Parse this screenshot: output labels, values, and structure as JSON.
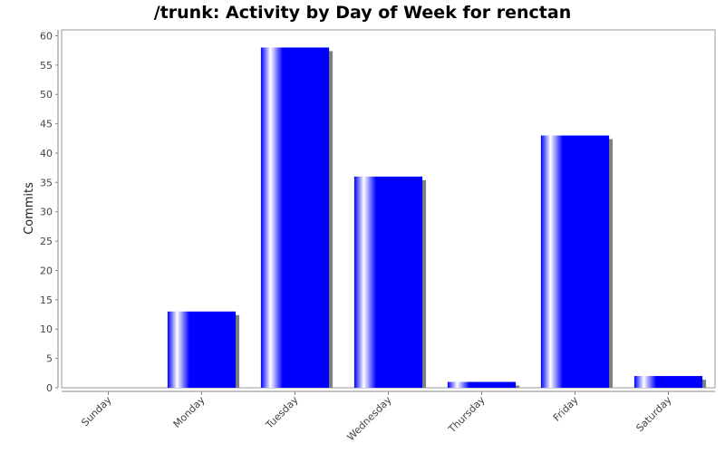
{
  "chart_data": {
    "type": "bar",
    "title": "/trunk: Activity by Day of Week for renctan",
    "xlabel": "",
    "ylabel": "Commits",
    "categories": [
      "Sunday",
      "Monday",
      "Tuesday",
      "Wednesday",
      "Thursday",
      "Friday",
      "Saturday"
    ],
    "values": [
      0,
      13,
      58,
      36,
      1,
      43,
      2
    ],
    "ylim": [
      0,
      61
    ],
    "yticks": [
      0,
      5,
      10,
      15,
      20,
      25,
      30,
      35,
      40,
      45,
      50,
      55,
      60
    ],
    "grid": false,
    "legend": "none",
    "colors": {
      "bar": "#0000ff",
      "bar_highlight": "#ffffff",
      "shadow": "#808080",
      "axis": "#888888"
    }
  }
}
